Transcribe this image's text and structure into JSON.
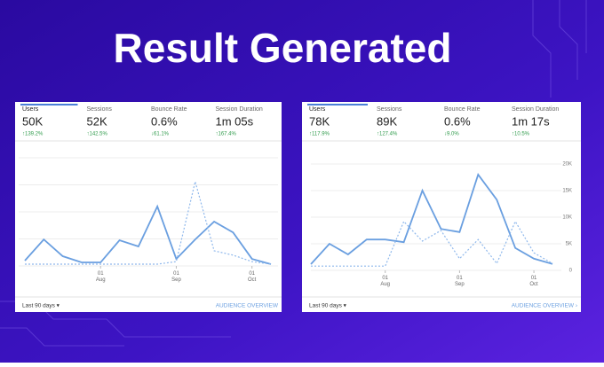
{
  "header": {
    "title": "Result Generated"
  },
  "chart_data": [
    {
      "type": "line",
      "metrics": [
        {
          "label": "Users",
          "value": "50K",
          "change": "↑139.2%"
        },
        {
          "label": "Sessions",
          "value": "52K",
          "change": "↑142.5%"
        },
        {
          "label": "Bounce Rate",
          "value": "0.6%",
          "change": "↓61.1%"
        },
        {
          "label": "Session Duration",
          "value": "1m 05s",
          "change": "↑167.4%"
        }
      ],
      "categories": [
        null,
        null,
        null,
        null,
        "01 Aug",
        null,
        null,
        null,
        "01 Sep",
        null,
        null,
        null,
        "01 Oct",
        null
      ],
      "series": [
        {
          "color": "#6a9fe0",
          "values": [
            980,
            4900,
            1800,
            650,
            650,
            4750,
            3600,
            11000,
            1300,
            4900,
            8200,
            6200,
            1300,
            330
          ]
        },
        {
          "color": "#8fb8ec",
          "dashed": true,
          "values": [
            330,
            330,
            330,
            330,
            330,
            330,
            330,
            330,
            800,
            15600,
            2800,
            2000,
            800,
            330
          ]
        }
      ],
      "ylim": [
        0,
        20000
      ],
      "footer_left": "Last 90 days ▾",
      "footer_right": "AUDIENCE OVERVIEW"
    },
    {
      "type": "line",
      "metrics": [
        {
          "label": "Users",
          "value": "78K",
          "change": "↑117.9%"
        },
        {
          "label": "Sessions",
          "value": "89K",
          "change": "↑127.4%"
        },
        {
          "label": "Bounce Rate",
          "value": "0.6%",
          "change": "↓9.0%"
        },
        {
          "label": "Session Duration",
          "value": "1m 17s",
          "change": "↑10.5%"
        }
      ],
      "categories": [
        null,
        null,
        null,
        null,
        "01 Aug",
        null,
        null,
        null,
        "01 Sep",
        null,
        null,
        null,
        "01 Oct",
        null
      ],
      "series": [
        {
          "color": "#6a9fe0",
          "values": [
            1170,
            5000,
            3000,
            5800,
            5800,
            5300,
            15000,
            7800,
            7200,
            18000,
            13300,
            4200,
            2200,
            1200
          ]
        },
        {
          "color": "#8fb8ec",
          "dashed": true,
          "values": [
            800,
            800,
            800,
            800,
            800,
            9200,
            5500,
            7500,
            2200,
            5800,
            1300,
            9200,
            3300,
            1300
          ]
        }
      ],
      "ylim": [
        0,
        20000
      ],
      "yticks": [
        0,
        {
          "value": 5000,
          "label": "5K"
        },
        {
          "value": 10000,
          "label": "10K"
        },
        {
          "value": 15000,
          "label": "15K"
        },
        {
          "value": 20000,
          "label": "20K"
        }
      ],
      "footer_left": "Last 90 days ▾",
      "footer_right": "AUDIENCE OVERVIEW  ›"
    }
  ]
}
